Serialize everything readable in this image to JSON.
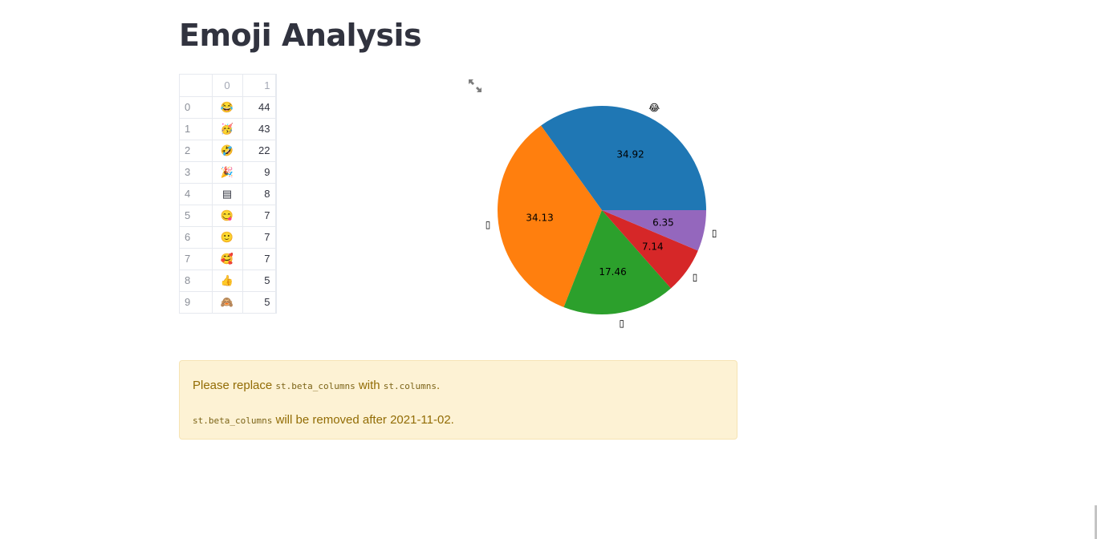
{
  "page": {
    "title": "Emoji Analysis"
  },
  "dataframe": {
    "columns": [
      "",
      "0",
      "1"
    ],
    "rows": [
      {
        "index": "0",
        "emoji": "😂",
        "count": "44"
      },
      {
        "index": "1",
        "emoji": "🥳",
        "count": "43"
      },
      {
        "index": "2",
        "emoji": "🤣",
        "count": "22"
      },
      {
        "index": "3",
        "emoji": "🎉",
        "count": "9"
      },
      {
        "index": "4",
        "emoji": "▤",
        "count": "8"
      },
      {
        "index": "5",
        "emoji": "😋",
        "count": "7"
      },
      {
        "index": "6",
        "emoji": "🙂",
        "count": "7"
      },
      {
        "index": "7",
        "emoji": "🥰",
        "count": "7"
      },
      {
        "index": "8",
        "emoji": "👍",
        "count": "5"
      },
      {
        "index": "9",
        "emoji": "🙈",
        "count": "5"
      }
    ]
  },
  "icons": {
    "expand": "fullscreen-expand-icon"
  },
  "chart_data": {
    "type": "pie",
    "slices": [
      {
        "label": "😂",
        "value": 34.92,
        "pct_label": "34.92",
        "color": "#1f77b4"
      },
      {
        "label": "🥳",
        "value": 34.13,
        "pct_label": "34.13",
        "color": "#ff7f0e"
      },
      {
        "label": "🤣",
        "value": 17.46,
        "pct_label": "17.46",
        "color": "#2ca02c"
      },
      {
        "label": "🎉",
        "value": 7.14,
        "pct_label": "7.14",
        "color": "#d62728"
      },
      {
        "label": "▤",
        "value": 6.35,
        "pct_label": "6.35",
        "color": "#9467bd"
      }
    ],
    "outer_labels": [
      "😂",
      "▯",
      "▯",
      "▯",
      "▯"
    ]
  },
  "warning": {
    "line1_pre": "Please replace ",
    "line1_code1": "st.beta_columns",
    "line1_mid": " with ",
    "line1_code2": "st.columns",
    "line1_end": ".",
    "line2_code": "st.beta_columns",
    "line2_text": " will be removed after 2021-11-02."
  }
}
